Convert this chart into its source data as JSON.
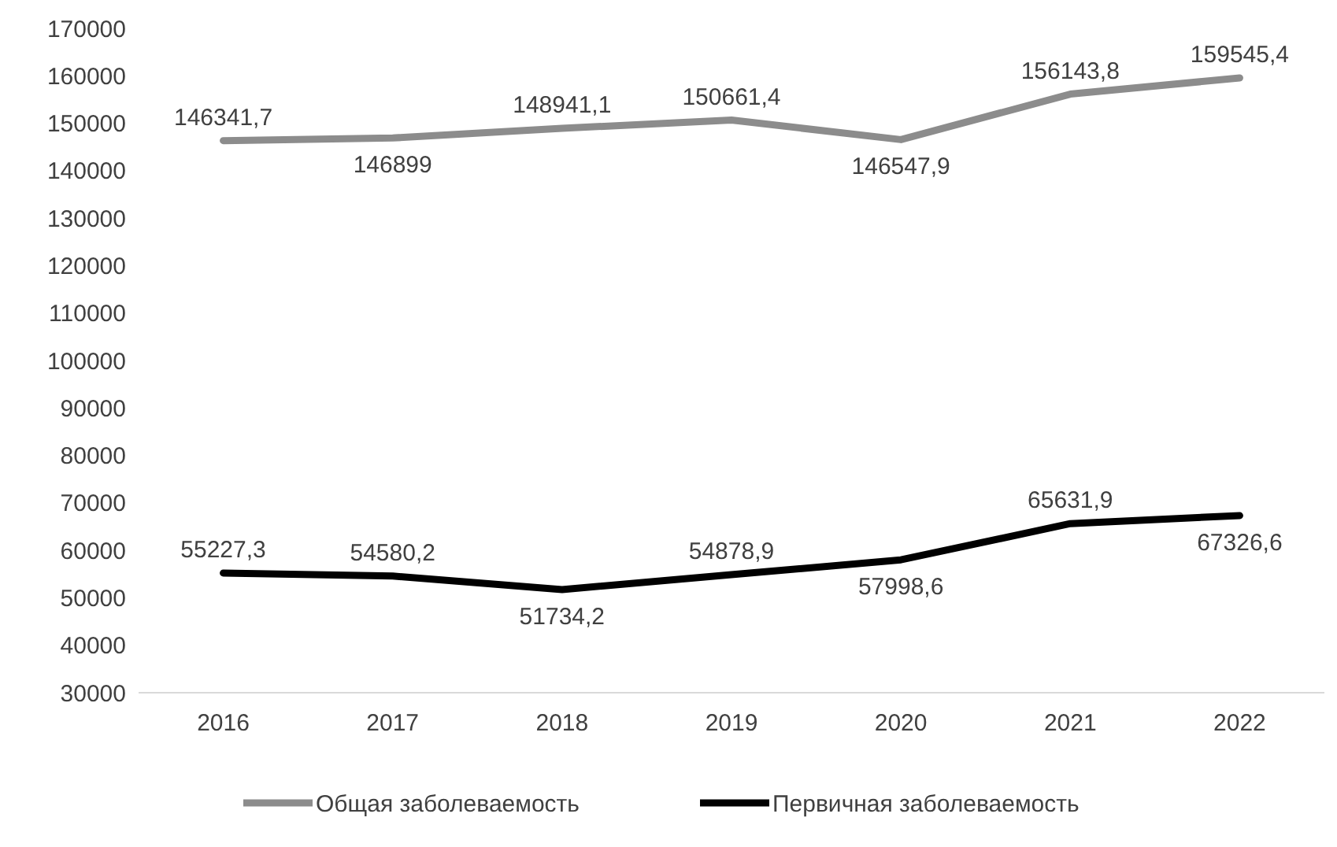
{
  "chart_data": {
    "type": "line",
    "categories": [
      "2016",
      "2017",
      "2018",
      "2019",
      "2020",
      "2021",
      "2022"
    ],
    "series": [
      {
        "name": "Общая заболеваемость",
        "color": "#8c8c8c",
        "values": [
          146341.7,
          146899,
          148941.1,
          150661.4,
          146547.9,
          156143.8,
          159545.4
        ],
        "value_labels": [
          "146341,7",
          "146899",
          "148941,1",
          "150661,4",
          "146547,9",
          "156143,8",
          "159545,4"
        ]
      },
      {
        "name": "Первичная заболеваемость",
        "color": "#000000",
        "values": [
          55227.3,
          54580.2,
          51734.2,
          54878.9,
          57998.6,
          65631.9,
          67326.6
        ],
        "value_labels": [
          "55227,3",
          "54580,2",
          "51734,2",
          "54878,9",
          "57998,6",
          "65631,9",
          "67326,6"
        ]
      }
    ],
    "ylim": [
      30000,
      170000
    ],
    "yticks": [
      30000,
      40000,
      50000,
      60000,
      70000,
      80000,
      90000,
      100000,
      110000,
      120000,
      130000,
      140000,
      150000,
      160000,
      170000
    ],
    "grid": false,
    "legend": "bottom",
    "marker": "none",
    "line_style": "solid"
  }
}
